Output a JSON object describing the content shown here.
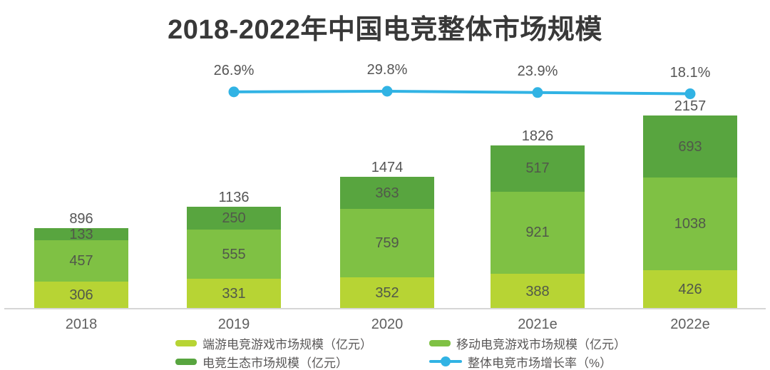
{
  "title": "2018-2022年中国电竞整体市场规模",
  "chart_data": {
    "type": "stacked-bar+line",
    "categories": [
      "2018",
      "2019",
      "2020",
      "2021e",
      "2022e"
    ],
    "totals": [
      896,
      1136,
      1474,
      1826,
      2157
    ],
    "series": [
      {
        "name": "端游电竞游戏市场规模（亿元）",
        "stack_position": "bottom",
        "color": "#b7d434",
        "values": [
          306,
          331,
          352,
          388,
          426
        ]
      },
      {
        "name": "移动电竞游戏市场规模（亿元）",
        "stack_position": "middle",
        "color": "#7fc144",
        "values": [
          457,
          555,
          759,
          921,
          1038
        ]
      },
      {
        "name": "电竞生态市场规模（亿元）",
        "stack_position": "top",
        "color": "#58a53f",
        "values": [
          133,
          250,
          363,
          517,
          693
        ]
      }
    ],
    "line_series": {
      "name": "整体电竞市场增长率（%）",
      "color": "#31b3e4",
      "categories": [
        "2019",
        "2020",
        "2021e",
        "2022e"
      ],
      "values": [
        26.9,
        29.8,
        23.9,
        18.1
      ]
    },
    "legend": {
      "position": "bottom",
      "entries": [
        {
          "marker": "swatch",
          "color": "#b7d434",
          "label": "端游电竞游戏市场规模（亿元）"
        },
        {
          "marker": "swatch",
          "color": "#7fc144",
          "label": "移动电竞游戏市场规模（亿元）"
        },
        {
          "marker": "swatch",
          "color": "#58a53f",
          "label": "电竞生态市场规模（亿元）"
        },
        {
          "marker": "line-dot",
          "color": "#31b3e4",
          "label": "整体电竞市场增长率（%）"
        }
      ]
    },
    "ylim": [
      0,
      2157
    ],
    "grid": false,
    "y_axis_visible": false
  },
  "colors": {
    "background": "#ffffff",
    "title": "#383838",
    "value_label": "#51584a",
    "total_label": "#555555",
    "axis_line": "#d6d6d6",
    "tick_label": "#5f5f5f",
    "legend_text": "#595757"
  }
}
